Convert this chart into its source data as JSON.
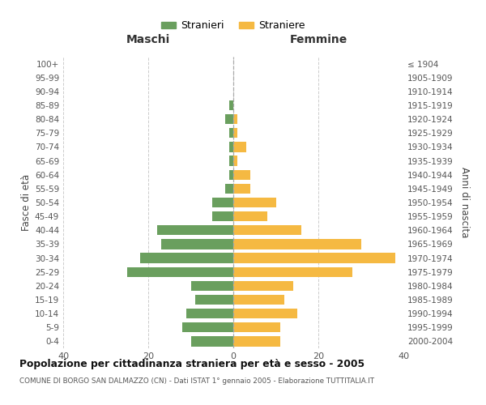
{
  "age_groups": [
    "100+",
    "95-99",
    "90-94",
    "85-89",
    "80-84",
    "75-79",
    "70-74",
    "65-69",
    "60-64",
    "55-59",
    "50-54",
    "45-49",
    "40-44",
    "35-39",
    "30-34",
    "25-29",
    "20-24",
    "15-19",
    "10-14",
    "5-9",
    "0-4"
  ],
  "birth_years": [
    "≤ 1904",
    "1905-1909",
    "1910-1914",
    "1915-1919",
    "1920-1924",
    "1925-1929",
    "1930-1934",
    "1935-1939",
    "1940-1944",
    "1945-1949",
    "1950-1954",
    "1955-1959",
    "1960-1964",
    "1965-1969",
    "1970-1974",
    "1975-1979",
    "1980-1984",
    "1985-1989",
    "1990-1994",
    "1995-1999",
    "2000-2004"
  ],
  "maschi": [
    0,
    0,
    0,
    1,
    2,
    1,
    1,
    1,
    1,
    2,
    5,
    5,
    18,
    17,
    22,
    25,
    10,
    9,
    11,
    12,
    10
  ],
  "femmine": [
    0,
    0,
    0,
    0,
    1,
    1,
    3,
    1,
    4,
    4,
    10,
    8,
    16,
    30,
    38,
    28,
    14,
    12,
    15,
    11,
    11
  ],
  "color_maschi": "#6a9f5e",
  "color_femmine": "#f5b942",
  "title": "Popolazione per cittadinanza straniera per età e sesso - 2005",
  "subtitle": "COMUNE DI BORGO SAN DALMAZZO (CN) - Dati ISTAT 1° gennaio 2005 - Elaborazione TUTTITALIA.IT",
  "label_maschi": "Maschi",
  "label_femmine": "Femmine",
  "ylabel_left": "Fasce di età",
  "ylabel_right": "Anni di nascita",
  "legend_maschi": "Stranieri",
  "legend_femmine": "Straniere",
  "xlim": 40,
  "bg_color": "#ffffff",
  "grid_color": "#cccccc"
}
